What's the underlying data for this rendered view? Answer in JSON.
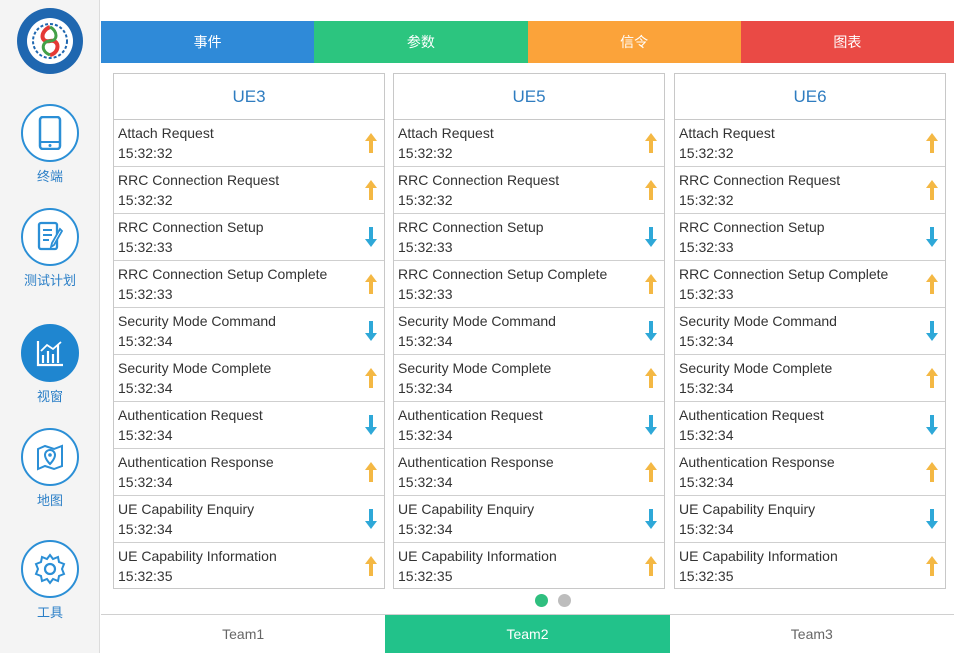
{
  "sidebar": {
    "items": [
      {
        "label": "终端",
        "icon": "phone-icon"
      },
      {
        "label": "测试计划",
        "icon": "document-edit-icon"
      },
      {
        "label": "视窗",
        "icon": "chart-icon",
        "active": true
      },
      {
        "label": "地图",
        "icon": "map-icon"
      },
      {
        "label": "工具",
        "icon": "gear-icon"
      }
    ]
  },
  "tabs": [
    {
      "label": "事件",
      "color": "#2f8ad8"
    },
    {
      "label": "参数",
      "color": "#2cc57f"
    },
    {
      "label": "信令",
      "color": "#fba33a"
    },
    {
      "label": "图表",
      "color": "#ea4a45"
    }
  ],
  "colors": {
    "up_arrow": "#f4b844",
    "down_arrow": "#2ea8d8",
    "accent": "#22c28a"
  },
  "columns": [
    {
      "title": "UE3",
      "rows": [
        {
          "name": "Attach Request",
          "time": "15:32:32",
          "dir": "up"
        },
        {
          "name": "RRC Connection Request",
          "time": "15:32:32",
          "dir": "up"
        },
        {
          "name": "RRC Connection Setup",
          "time": "15:32:33",
          "dir": "down"
        },
        {
          "name": "RRC Connection Setup Complete",
          "time": "15:32:33",
          "dir": "up"
        },
        {
          "name": "Security Mode Command",
          "time": "15:32:34",
          "dir": "down"
        },
        {
          "name": "Security Mode Complete",
          "time": "15:32:34",
          "dir": "up"
        },
        {
          "name": "Authentication Request",
          "time": "15:32:34",
          "dir": "down"
        },
        {
          "name": "Authentication Response",
          "time": "15:32:34",
          "dir": "up"
        },
        {
          "name": "UE Capability Enquiry",
          "time": "15:32:34",
          "dir": "down"
        },
        {
          "name": "UE Capability Information",
          "time": "15:32:35",
          "dir": "up"
        }
      ]
    },
    {
      "title": "UE5",
      "rows": [
        {
          "name": "Attach Request",
          "time": "15:32:32",
          "dir": "up"
        },
        {
          "name": "RRC Connection Request",
          "time": "15:32:32",
          "dir": "up"
        },
        {
          "name": "RRC Connection Setup",
          "time": "15:32:33",
          "dir": "down"
        },
        {
          "name": "RRC Connection Setup Complete",
          "time": "15:32:33",
          "dir": "up"
        },
        {
          "name": "Security Mode Command",
          "time": "15:32:34",
          "dir": "down"
        },
        {
          "name": "Security Mode Complete",
          "time": "15:32:34",
          "dir": "up"
        },
        {
          "name": "Authentication Request",
          "time": "15:32:34",
          "dir": "down"
        },
        {
          "name": "Authentication Response",
          "time": "15:32:34",
          "dir": "up"
        },
        {
          "name": "UE Capability Enquiry",
          "time": "15:32:34",
          "dir": "down"
        },
        {
          "name": "UE Capability Information",
          "time": "15:32:35",
          "dir": "up"
        }
      ]
    },
    {
      "title": "UE6",
      "rows": [
        {
          "name": "Attach Request",
          "time": "15:32:32",
          "dir": "up"
        },
        {
          "name": "RRC Connection Request",
          "time": "15:32:32",
          "dir": "up"
        },
        {
          "name": "RRC Connection Setup",
          "time": "15:32:33",
          "dir": "down"
        },
        {
          "name": "RRC Connection Setup Complete",
          "time": "15:32:33",
          "dir": "up"
        },
        {
          "name": "Security Mode Command",
          "time": "15:32:34",
          "dir": "down"
        },
        {
          "name": "Security Mode Complete",
          "time": "15:32:34",
          "dir": "up"
        },
        {
          "name": "Authentication Request",
          "time": "15:32:34",
          "dir": "down"
        },
        {
          "name": "Authentication Response",
          "time": "15:32:34",
          "dir": "up"
        },
        {
          "name": "UE Capability Enquiry",
          "time": "15:32:34",
          "dir": "down"
        },
        {
          "name": "UE Capability Information",
          "time": "15:32:35",
          "dir": "up"
        }
      ]
    }
  ],
  "pager": {
    "pages": 2,
    "current": 1
  },
  "teams": [
    {
      "label": "Team1",
      "active": false
    },
    {
      "label": "Team2",
      "active": true
    },
    {
      "label": "Team3",
      "active": false
    }
  ]
}
